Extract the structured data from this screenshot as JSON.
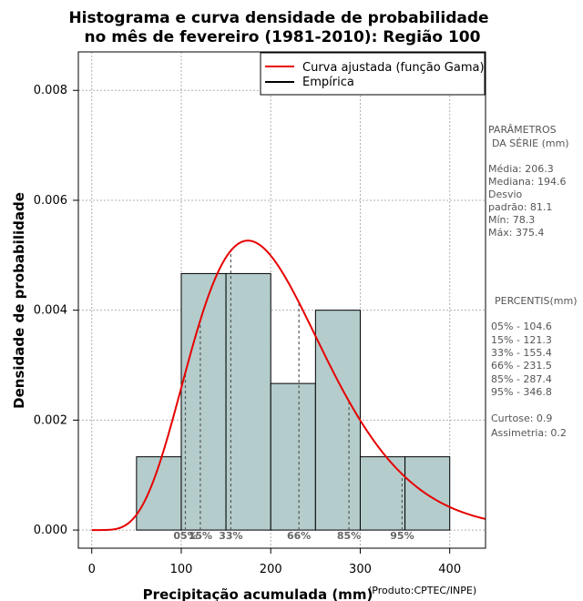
{
  "chart_data": {
    "type": "bar",
    "title_line1": "Histograma e curva densidade de probabilidade",
    "title_line2": "no mês de fevereiro (1981-2010): Região 100",
    "xlabel": "Precipitação acumulada (mm)",
    "ylabel": "Densidade de probabilidade",
    "credit": "(Produto:CPTEC/INPE)",
    "xlim": [
      -15,
      440
    ],
    "ylim": [
      -0.00033,
      0.0087
    ],
    "xticks": [
      0,
      100,
      200,
      300,
      400
    ],
    "xtick_labels": [
      "0",
      "100",
      "200",
      "300",
      "400"
    ],
    "yticks": [
      0.0,
      0.002,
      0.004,
      0.006,
      0.008
    ],
    "ytick_labels": [
      "0.000",
      "0.002",
      "0.004",
      "0.006",
      "0.008"
    ],
    "bins": [
      {
        "x0": 50,
        "x1": 100,
        "density": 0.001333
      },
      {
        "x0": 100,
        "x1": 150,
        "density": 0.004667
      },
      {
        "x0": 150,
        "x1": 200,
        "density": 0.004667
      },
      {
        "x0": 200,
        "x1": 250,
        "density": 0.002667
      },
      {
        "x0": 250,
        "x1": 300,
        "density": 0.004
      },
      {
        "x0": 300,
        "x1": 350,
        "density": 0.001333
      },
      {
        "x0": 350,
        "x1": 400,
        "density": 0.001333
      }
    ],
    "gamma_fit": {
      "shape": 6.47,
      "scale": 31.9
    },
    "percentile_lines": [
      {
        "label": "05%",
        "value": 104.6
      },
      {
        "label": "15%",
        "value": 121.3
      },
      {
        "label": "33%",
        "value": 155.4
      },
      {
        "label": "66%",
        "value": 231.5
      },
      {
        "label": "85%",
        "value": 287.4
      },
      {
        "label": "95%",
        "value": 346.8
      }
    ],
    "legend": [
      {
        "label": "Curva ajustada (função Gama)",
        "color": "#e60000"
      },
      {
        "label": "Empírica",
        "color": "#000000"
      }
    ],
    "colors": {
      "bar": "#b4cccc",
      "curve": "#e60000",
      "grid": "#b0b0b0",
      "pctline": "#555555"
    }
  },
  "side_panel": {
    "params_title_1": "PARÂMETROS",
    "params_title_2": "DA SÉRIE (mm)",
    "media": "Média:  206.3",
    "mediana": "Mediana:  194.6",
    "desvio_1": "Desvio",
    "desvio_2": "padrão:  81.1",
    "min": "Mín:  78.3",
    "max": "Máx:  375.4",
    "percentis_title": "PERCENTIS(mm)",
    "percentis": [
      "05% -  104.6",
      "15% -  121.3",
      "33% -  155.4",
      "66% -  231.5",
      "85% -  287.4",
      "95% -  346.8"
    ],
    "curtose": "Curtose:  0.9",
    "assimetria": "Assimetria:  0.2"
  }
}
